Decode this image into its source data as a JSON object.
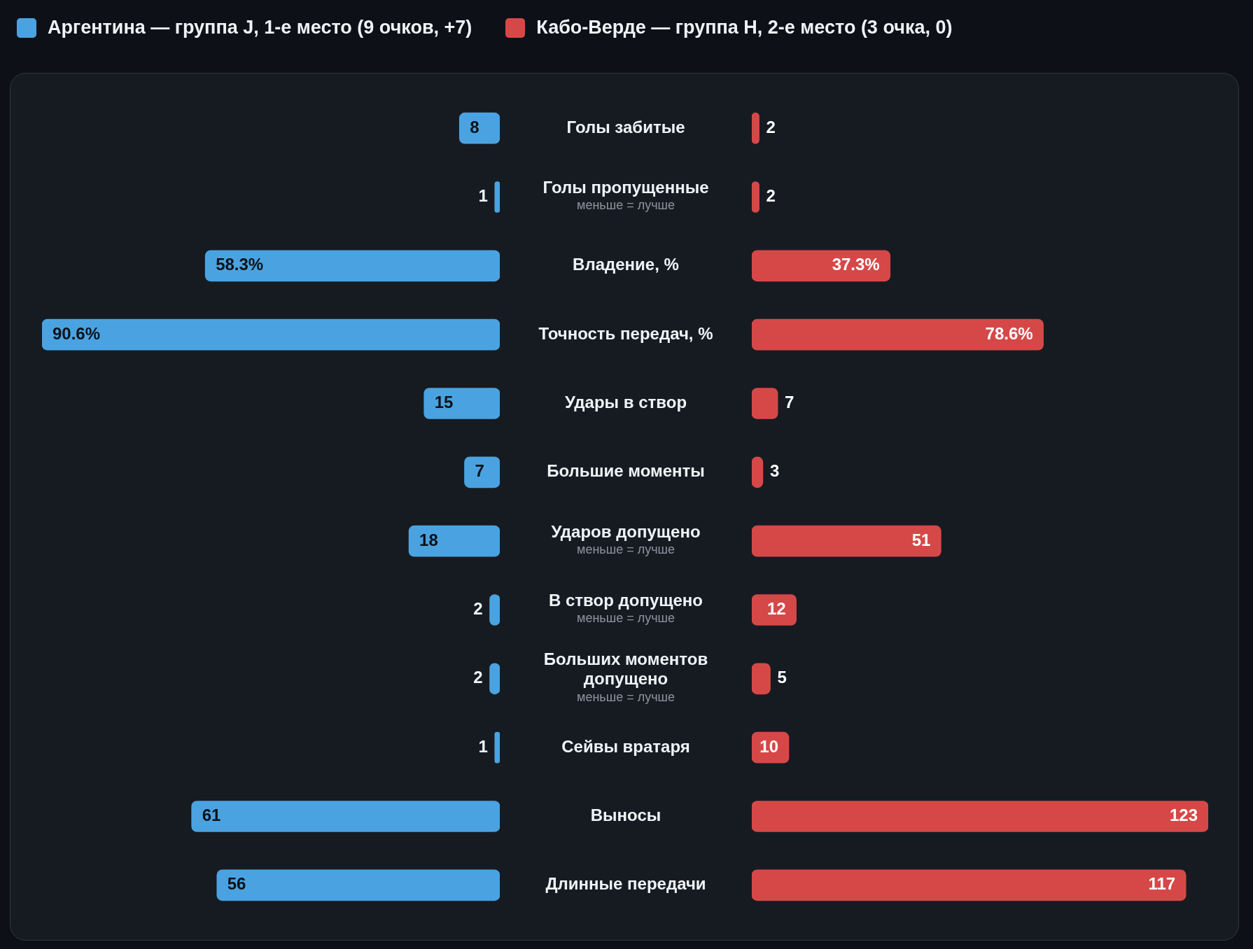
{
  "chart_data": [
    {
      "type": "bar",
      "orientation": "horizontal",
      "legend": "top left",
      "categories": [
        "Голы забитые",
        "Голы пропущенные\nменьше = лучше",
        "Владение, %",
        "Точность передач, %",
        "Удары в створ",
        "Большие моменты",
        "Ударов допущено\nменьше = лучше",
        "В створ допущено\nменьше = лучше",
        "Больших моментов допущено\nменьше = лучше",
        "Сейвы вратаря",
        "Выносы",
        "Длинные передачи"
      ],
      "series": [
        {
          "name": "Аргентина — группа J, 1-е место (9 очков, +7)",
          "color": "#4aa3e0",
          "values": [
            8,
            1,
            58.3,
            90.6,
            15,
            7,
            18,
            2,
            2,
            1,
            61,
            56
          ],
          "value_labels": [
            "8",
            "1",
            "58.3%",
            "90.6%",
            "15",
            "7",
            "18",
            "2",
            "2",
            "1",
            "61",
            "56"
          ]
        }
      ]
    },
    {
      "type": "bar",
      "orientation": "horizontal",
      "legend": "top left",
      "categories": [
        null,
        null,
        null,
        null,
        null,
        null,
        null,
        null,
        null,
        null,
        null,
        null
      ],
      "series": [
        {
          "name": "Кабо-Верде — группа H, 2-е место (3 очка, 0)",
          "color": "#d64848",
          "values": [
            2,
            2,
            37.3,
            78.6,
            7,
            3,
            51,
            12,
            5,
            10,
            123,
            117
          ],
          "value_labels": [
            "2",
            "2",
            "37.3%",
            "78.6%",
            "7",
            "3",
            "51",
            "12",
            "5",
            "10",
            "123",
            "117"
          ]
        }
      ]
    }
  ]
}
